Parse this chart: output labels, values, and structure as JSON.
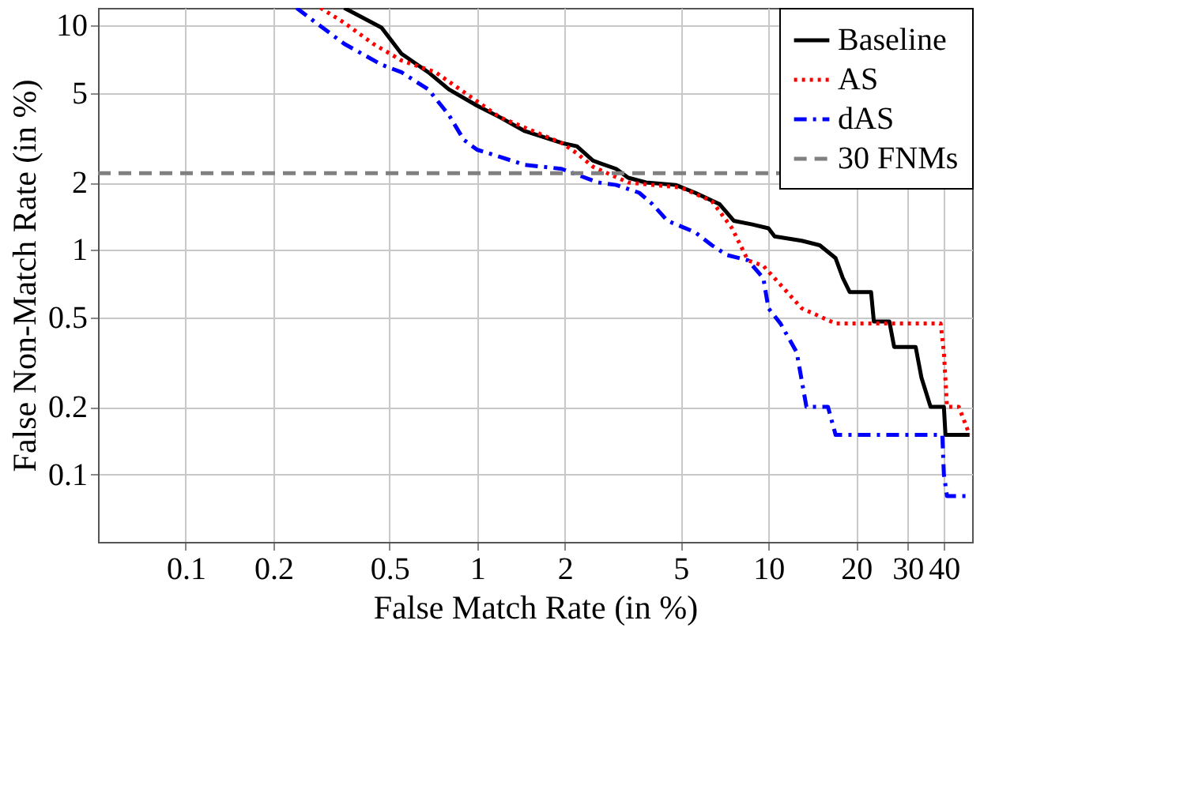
{
  "chart_data": {
    "type": "line",
    "xlabel": "False Match Rate (in %)",
    "ylabel": "False Non-Match Rate (in %)",
    "log": "xy",
    "xlim": [
      0.05,
      50
    ],
    "ylim": [
      0.05,
      12
    ],
    "xticks": [
      0.1,
      0.2,
      0.5,
      1,
      2,
      5,
      10,
      20,
      30,
      40
    ],
    "yticks": [
      0.1,
      0.2,
      0.5,
      1,
      2,
      5,
      10
    ],
    "grid": true,
    "legend": "top right",
    "series": [
      {
        "name": "Baseline",
        "color": "#000000",
        "line_style": "solid",
        "x": [
          0.35,
          0.47,
          0.55,
          0.68,
          0.8,
          1.0,
          1.2,
          1.45,
          1.95,
          2.2,
          2.5,
          3.0,
          3.3,
          3.8,
          4.8,
          5.6,
          6.8,
          7.6,
          8.8,
          10,
          10.5,
          13,
          15,
          17,
          18,
          19,
          22.5,
          23,
          26,
          27,
          32,
          33.5,
          36,
          40,
          40.5,
          49
        ],
        "values": [
          12,
          9.8,
          7.5,
          6.2,
          5.2,
          4.4,
          3.9,
          3.4,
          3.0,
          2.9,
          2.5,
          2.3,
          2.1,
          2.0,
          1.95,
          1.8,
          1.6,
          1.35,
          1.3,
          1.25,
          1.15,
          1.1,
          1.05,
          0.92,
          0.75,
          0.65,
          0.65,
          0.48,
          0.48,
          0.37,
          0.37,
          0.27,
          0.2,
          0.2,
          0.15,
          0.15
        ]
      },
      {
        "name": "AS",
        "color": "#ff0000",
        "line_style": "dotted",
        "x": [
          0.29,
          0.35,
          0.44,
          0.55,
          0.72,
          1.0,
          1.2,
          1.55,
          1.95,
          2.2,
          2.5,
          2.8,
          3.3,
          4.0,
          5.0,
          6.4,
          7.5,
          8.5,
          9.6,
          11,
          13,
          17,
          22.5,
          39,
          40,
          41,
          45,
          49
        ],
        "values": [
          12,
          10.3,
          8.3,
          7.0,
          6.2,
          4.6,
          3.9,
          3.4,
          3.0,
          2.7,
          2.35,
          2.2,
          2.0,
          1.95,
          1.9,
          1.65,
          1.25,
          0.9,
          0.85,
          0.7,
          0.55,
          0.47,
          0.47,
          0.47,
          0.35,
          0.2,
          0.2,
          0.15
        ]
      },
      {
        "name": "dAS",
        "color": "#0000ff",
        "line_style": "dashdot",
        "x": [
          0.24,
          0.28,
          0.35,
          0.47,
          0.55,
          0.68,
          0.8,
          0.9,
          1.0,
          1.2,
          1.45,
          1.95,
          2.6,
          3.0,
          3.6,
          4.0,
          4.5,
          5.6,
          6.4,
          7.2,
          8.5,
          9.6,
          10,
          11,
          12.5,
          13.5,
          16,
          17,
          39.5,
          40,
          41,
          49
        ],
        "values": [
          12,
          10.3,
          8.3,
          6.7,
          6.2,
          5.2,
          4.0,
          3.1,
          2.8,
          2.6,
          2.4,
          2.3,
          2.0,
          1.95,
          1.8,
          1.6,
          1.35,
          1.2,
          1.05,
          0.95,
          0.9,
          0.75,
          0.55,
          0.47,
          0.35,
          0.2,
          0.2,
          0.15,
          0.15,
          0.1,
          0.08,
          0.08
        ]
      }
    ],
    "ref_lines": [
      {
        "axis": "y",
        "value": 2.2,
        "label": "30 FNMs",
        "color": "#808080",
        "line_style": "dashed"
      }
    ]
  }
}
